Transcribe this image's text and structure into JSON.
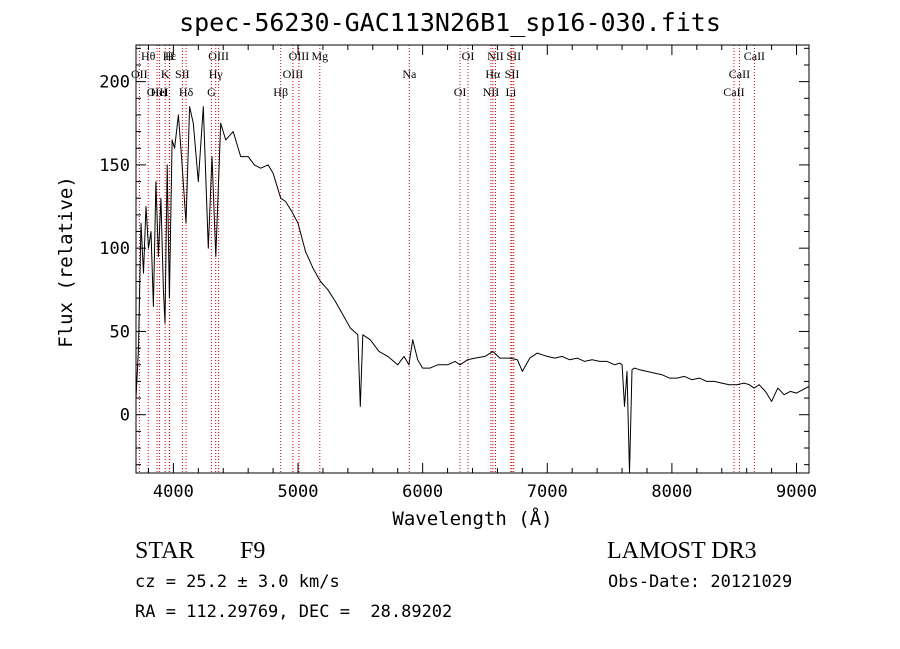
{
  "chart_data": {
    "type": "line",
    "title": "spec-56230-GAC113N26B1_sp16-030.fits",
    "xlabel": "Wavelength (Å)",
    "ylabel": "Flux (relative)",
    "xlim": [
      3700,
      9100
    ],
    "ylim": [
      -35,
      222
    ],
    "xticks": [
      4000,
      5000,
      6000,
      7000,
      8000,
      9000
    ],
    "xtick_labels": [
      "4000",
      "5000",
      "6000",
      "7000",
      "8000",
      "9000"
    ],
    "yticks": [
      0,
      50,
      100,
      150,
      200
    ],
    "ytick_labels": [
      "0",
      "50",
      "100",
      "150",
      "200"
    ],
    "series": [
      {
        "name": "flux",
        "x": [
          3700,
          3720,
          3740,
          3760,
          3780,
          3800,
          3820,
          3840,
          3860,
          3880,
          3900,
          3920,
          3933,
          3950,
          3968,
          3990,
          4010,
          4040,
          4070,
          4101,
          4130,
          4160,
          4200,
          4240,
          4280,
          4310,
          4340,
          4380,
          4420,
          4480,
          4540,
          4600,
          4650,
          4700,
          4760,
          4800,
          4861,
          4900,
          4950,
          5000,
          5060,
          5120,
          5180,
          5240,
          5300,
          5360,
          5420,
          5480,
          5500,
          5520,
          5580,
          5650,
          5720,
          5800,
          5850,
          5890,
          5920,
          5960,
          6000,
          6060,
          6120,
          6200,
          6260,
          6300,
          6360,
          6420,
          6500,
          6563,
          6620,
          6700,
          6760,
          6800,
          6860,
          6920,
          6960,
          7000,
          7060,
          7120,
          7180,
          7240,
          7300,
          7360,
          7420,
          7480,
          7540,
          7580,
          7600,
          7620,
          7640,
          7660,
          7680,
          7700,
          7740,
          7800,
          7860,
          7920,
          7980,
          8040,
          8100,
          8160,
          8220,
          8280,
          8340,
          8400,
          8460,
          8520,
          8580,
          8620,
          8660,
          8700,
          8750,
          8800,
          8850,
          8900,
          8950,
          9000,
          9050,
          9100
        ],
        "values": [
          10,
          40,
          115,
          85,
          125,
          100,
          110,
          65,
          140,
          95,
          130,
          75,
          55,
          150,
          70,
          165,
          160,
          180,
          150,
          115,
          185,
          175,
          140,
          185,
          100,
          155,
          95,
          175,
          165,
          170,
          155,
          155,
          150,
          148,
          150,
          145,
          130,
          128,
          122,
          115,
          98,
          88,
          80,
          75,
          68,
          60,
          52,
          48,
          5,
          48,
          45,
          38,
          35,
          30,
          35,
          30,
          45,
          33,
          28,
          28,
          30,
          30,
          32,
          30,
          33,
          34,
          35,
          38,
          34,
          34,
          33,
          26,
          34,
          37,
          36,
          35,
          34,
          35,
          33,
          34,
          32,
          33,
          32,
          32,
          30,
          31,
          30,
          5,
          26,
          -35,
          27,
          28,
          27,
          26,
          25,
          24,
          22,
          22,
          23,
          21,
          22,
          20,
          20,
          19,
          18,
          18,
          19,
          18,
          16,
          18,
          14,
          8,
          16,
          12,
          14,
          13,
          15,
          17
        ]
      }
    ],
    "lines": [
      {
        "label": "Hθ",
        "wave": 3798
      },
      {
        "label": "OII",
        "wave": 3727
      },
      {
        "label": "OIII",
        "wave": 3869
      },
      {
        "label": "Hε",
        "wave": 3970
      },
      {
        "label": "K",
        "wave": 3934
      },
      {
        "label": "HeI",
        "wave": 3889
      },
      {
        "label": "H",
        "wave": 3968
      },
      {
        "label": "SII",
        "wave": 4072
      },
      {
        "label": "Hδ",
        "wave": 4102
      },
      {
        "label": "OIII",
        "wave": 4363
      },
      {
        "label": "Hγ",
        "wave": 4340
      },
      {
        "label": "G",
        "wave": 4305
      },
      {
        "label": "OIII",
        "wave": 5007
      },
      {
        "label": "OIII",
        "wave": 4959
      },
      {
        "label": "Hβ",
        "wave": 4861
      },
      {
        "label": "Mg",
        "wave": 5175
      },
      {
        "label": "Na",
        "wave": 5893
      },
      {
        "label": "OI",
        "wave": 6300
      },
      {
        "label": "OI",
        "wave": 6364
      },
      {
        "label": "Hα",
        "wave": 6563
      },
      {
        "label": "NII",
        "wave": 6548
      },
      {
        "label": "NII",
        "wave": 6584
      },
      {
        "label": "SII",
        "wave": 6717
      },
      {
        "label": "Li",
        "wave": 6708
      },
      {
        "label": "SII",
        "wave": 6731
      },
      {
        "label": "CaII",
        "wave": 8542
      },
      {
        "label": "CaII",
        "wave": 8498
      },
      {
        "label": "CaII",
        "wave": 8662
      }
    ]
  },
  "info": {
    "object_class": "STAR",
    "subclass": "F9",
    "survey": "LAMOST DR3",
    "cz": "cz = 25.2 ± 3.0 km/s",
    "obs_date": "Obs-Date: 20121029",
    "radec": "RA = 112.29769, DEC =  28.89202"
  },
  "colors": {
    "spectrum": "#000000",
    "line_marker": "#cc0000",
    "axes": "#000000"
  }
}
